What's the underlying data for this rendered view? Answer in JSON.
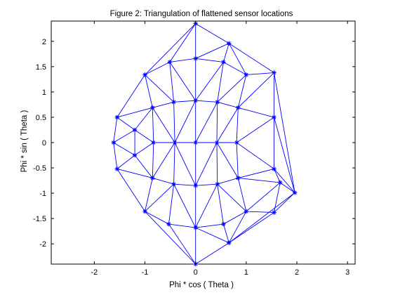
{
  "chart_data": {
    "type": "scatter",
    "title": "Figure 2: Triangulation of flattened sensor locations",
    "xlabel": "Phi * cos ( Theta )",
    "ylabel": "Phi * sin ( Theta )",
    "xlim": [
      -2.85,
      3.15
    ],
    "ylim": [
      -2.4,
      2.4
    ],
    "xticks": [
      -2,
      -1,
      0,
      1,
      2,
      3
    ],
    "xtick_labels": [
      "-2",
      "-1",
      "0",
      "1",
      "2",
      "3"
    ],
    "yticks": [
      -2,
      -1.5,
      -1,
      -0.5,
      0,
      0.5,
      1,
      1.5,
      2
    ],
    "ytick_labels": [
      "-2",
      "-1.5",
      "-1",
      "-0.5",
      "0",
      "0.5",
      "1",
      "1.5",
      "2"
    ],
    "grid": false,
    "marker": "*",
    "color": "#0000ff",
    "points": [
      [
        0,
        2.35
      ],
      [
        0.66,
        1.96
      ],
      [
        0,
        1.66
      ],
      [
        -0.51,
        1.59
      ],
      [
        0.55,
        1.59
      ],
      [
        -1.0,
        1.34
      ],
      [
        1.0,
        1.34
      ],
      [
        1.55,
        1.38
      ],
      [
        -0.43,
        0.8
      ],
      [
        0,
        0.83
      ],
      [
        0.43,
        0.8
      ],
      [
        -0.85,
        0.69
      ],
      [
        0.84,
        0.69
      ],
      [
        -1.55,
        0.5
      ],
      [
        1.55,
        0.5
      ],
      [
        -1.2,
        0.25
      ],
      [
        -1.62,
        0
      ],
      [
        -0.83,
        0
      ],
      [
        -0.41,
        0
      ],
      [
        0,
        0
      ],
      [
        0.42,
        0
      ],
      [
        0.81,
        0
      ],
      [
        -1.2,
        -0.25
      ],
      [
        -1.55,
        -0.52
      ],
      [
        1.55,
        -0.52
      ],
      [
        -0.85,
        -0.7
      ],
      [
        0.84,
        -0.7
      ],
      [
        -0.43,
        -0.82
      ],
      [
        0,
        -0.85
      ],
      [
        0.43,
        -0.82
      ],
      [
        1.67,
        -0.79
      ],
      [
        1.96,
        -0.99
      ],
      [
        -1.0,
        -1.36
      ],
      [
        1.0,
        -1.36
      ],
      [
        1.55,
        -1.38
      ],
      [
        -0.53,
        -1.61
      ],
      [
        0,
        -1.68
      ],
      [
        0.55,
        -1.61
      ],
      [
        0.66,
        -1.98
      ],
      [
        0,
        -2.4
      ]
    ],
    "triangles": [
      [
        0,
        2,
        3
      ],
      [
        0,
        1,
        2
      ],
      [
        0,
        3,
        5
      ],
      [
        1,
        4,
        2
      ],
      [
        1,
        6,
        4
      ],
      [
        1,
        7,
        6
      ],
      [
        2,
        4,
        9
      ],
      [
        2,
        9,
        3
      ],
      [
        3,
        9,
        8
      ],
      [
        3,
        8,
        5
      ],
      [
        4,
        10,
        9
      ],
      [
        4,
        6,
        10
      ],
      [
        5,
        8,
        11
      ],
      [
        5,
        11,
        13
      ],
      [
        6,
        12,
        10
      ],
      [
        6,
        7,
        12
      ],
      [
        7,
        14,
        12
      ],
      [
        7,
        31,
        14
      ],
      [
        8,
        9,
        18
      ],
      [
        8,
        18,
        11
      ],
      [
        9,
        10,
        19
      ],
      [
        9,
        19,
        18
      ],
      [
        10,
        20,
        19
      ],
      [
        10,
        12,
        20
      ],
      [
        11,
        18,
        17
      ],
      [
        11,
        17,
        15
      ],
      [
        11,
        15,
        13
      ],
      [
        12,
        14,
        21
      ],
      [
        12,
        21,
        20
      ],
      [
        13,
        15,
        16
      ],
      [
        14,
        24,
        21
      ],
      [
        14,
        31,
        24
      ],
      [
        15,
        17,
        22
      ],
      [
        15,
        22,
        16
      ],
      [
        16,
        22,
        23
      ],
      [
        17,
        18,
        25
      ],
      [
        17,
        25,
        22
      ],
      [
        18,
        19,
        28
      ],
      [
        18,
        28,
        27
      ],
      [
        18,
        27,
        25
      ],
      [
        19,
        20,
        28
      ],
      [
        20,
        29,
        28
      ],
      [
        20,
        26,
        29
      ],
      [
        20,
        21,
        26
      ],
      [
        21,
        24,
        26
      ],
      [
        22,
        25,
        23
      ],
      [
        23,
        25,
        32
      ],
      [
        24,
        30,
        26
      ],
      [
        24,
        31,
        30
      ],
      [
        25,
        27,
        32
      ],
      [
        26,
        30,
        33
      ],
      [
        26,
        33,
        29
      ],
      [
        27,
        28,
        36
      ],
      [
        27,
        36,
        35
      ],
      [
        27,
        35,
        32
      ],
      [
        28,
        29,
        36
      ],
      [
        29,
        37,
        36
      ],
      [
        29,
        33,
        37
      ],
      [
        30,
        31,
        34
      ],
      [
        30,
        34,
        33
      ],
      [
        31,
        38,
        34
      ],
      [
        32,
        35,
        39
      ],
      [
        33,
        34,
        38
      ],
      [
        33,
        38,
        37
      ],
      [
        35,
        36,
        39
      ],
      [
        36,
        38,
        39
      ],
      [
        36,
        37,
        38
      ]
    ]
  }
}
